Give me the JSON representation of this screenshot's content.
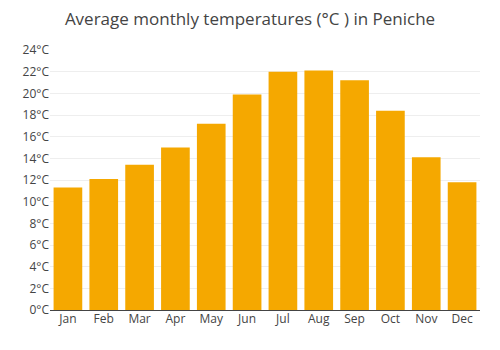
{
  "chart_data": {
    "type": "bar",
    "title": "Average monthly temperatures (°C ) in Peniche",
    "categories": [
      "Jan",
      "Feb",
      "Mar",
      "Apr",
      "May",
      "Jun",
      "Jul",
      "Aug",
      "Sep",
      "Oct",
      "Nov",
      "Dec"
    ],
    "values": [
      11.3,
      12.1,
      13.4,
      15.0,
      17.2,
      19.9,
      22.0,
      22.1,
      21.2,
      18.4,
      14.1,
      11.8
    ],
    "color": "#F5A800",
    "ylim": [
      0,
      24
    ],
    "yticks": [
      {
        "value": 0,
        "label": "0°C"
      },
      {
        "value": 2,
        "label": "2°C"
      },
      {
        "value": 4,
        "label": "4°C"
      },
      {
        "value": 6,
        "label": "6°C"
      },
      {
        "value": 8,
        "label": "8°C"
      },
      {
        "value": 10,
        "label": "10°C"
      },
      {
        "value": 12,
        "label": "12°C"
      },
      {
        "value": 14,
        "label": "14°C"
      },
      {
        "value": 16,
        "label": "16°C"
      },
      {
        "value": 18,
        "label": "18°C"
      },
      {
        "value": 20,
        "label": "20°C"
      },
      {
        "value": 22,
        "label": "22°C"
      },
      {
        "value": 24,
        "label": "24°C"
      }
    ],
    "grid": true
  }
}
